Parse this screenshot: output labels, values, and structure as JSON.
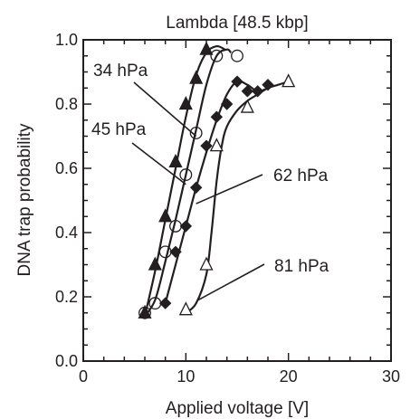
{
  "chart_data": {
    "type": "scatter",
    "title": "Lambda [48.5 kbp]",
    "xlabel": "Applied voltage [V]",
    "ylabel": "DNA trap probability",
    "xlim": [
      0,
      30
    ],
    "ylim": [
      0.0,
      1.0
    ],
    "x_ticks": [
      "0",
      "10",
      "20",
      "30"
    ],
    "y_ticks": [
      "0.0",
      "0.2",
      "0.4",
      "0.6",
      "0.8",
      "1.0"
    ],
    "grid": false,
    "series": [
      {
        "name": "34 hPa",
        "marker": "filled-triangle",
        "x": [
          6,
          7,
          8,
          9,
          10,
          11,
          12
        ],
        "y": [
          0.15,
          0.3,
          0.45,
          0.62,
          0.8,
          0.88,
          0.97
        ],
        "fit": {
          "x": [
            6,
            7,
            8,
            9,
            10,
            11,
            12,
            13,
            13.8
          ],
          "y": [
            0.14,
            0.28,
            0.44,
            0.6,
            0.76,
            0.89,
            0.96,
            0.98,
            0.97
          ]
        }
      },
      {
        "name": "45 hPa",
        "marker": "open-circle",
        "x": [
          6,
          7,
          8,
          9,
          10,
          11,
          13,
          15
        ],
        "y": [
          0.15,
          0.18,
          0.34,
          0.42,
          0.58,
          0.71,
          0.95,
          0.95
        ],
        "fit": {
          "x": [
            6,
            7,
            8,
            9,
            10,
            11,
            12,
            13,
            14,
            14.4
          ],
          "y": [
            0.14,
            0.19,
            0.31,
            0.44,
            0.58,
            0.72,
            0.86,
            0.95,
            0.97,
            0.96
          ]
        }
      },
      {
        "name": "62 hPa",
        "marker": "filled-diamond",
        "x": [
          8,
          9,
          10,
          11,
          12,
          13,
          14,
          15,
          16,
          17,
          18
        ],
        "y": [
          0.18,
          0.34,
          0.42,
          0.54,
          0.67,
          0.76,
          0.8,
          0.87,
          0.84,
          0.84,
          0.86
        ],
        "fit": {
          "x": [
            8,
            9,
            10,
            11,
            12,
            13,
            14,
            15,
            16,
            17,
            18
          ],
          "y": [
            0.18,
            0.3,
            0.42,
            0.54,
            0.65,
            0.75,
            0.83,
            0.87,
            0.86,
            0.84,
            0.85
          ]
        }
      },
      {
        "name": "81 hPa",
        "marker": "open-triangle",
        "x": [
          10,
          12,
          13,
          16,
          20
        ],
        "y": [
          0.16,
          0.3,
          0.67,
          0.79,
          0.87
        ],
        "fit": {
          "x": [
            10,
            11,
            12,
            12.5,
            13,
            13.5,
            14,
            15,
            16,
            17,
            18,
            19,
            20
          ],
          "y": [
            0.15,
            0.18,
            0.27,
            0.4,
            0.56,
            0.67,
            0.73,
            0.78,
            0.81,
            0.83,
            0.85,
            0.86,
            0.87
          ]
        }
      }
    ],
    "annotations": [
      {
        "text": "34 hPa",
        "at": [
          11.0,
          0.7
        ]
      },
      {
        "text": "45 hPa",
        "at": [
          10.0,
          0.55
        ]
      },
      {
        "text": "62 hPa",
        "at": [
          11.0,
          0.49
        ]
      },
      {
        "text": "81 hPa",
        "at": [
          11.2,
          0.19
        ]
      }
    ]
  }
}
